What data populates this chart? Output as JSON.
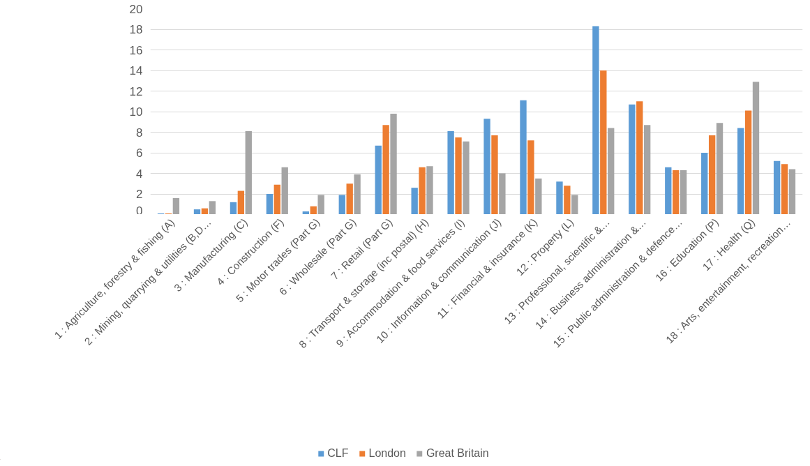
{
  "chart_data": {
    "type": "bar",
    "categories": [
      "1 : Agriculture, forestry & fishing (A)",
      "2 : Mining, quarrying & utilities (B,D…",
      "3 : Manufacturing (C)",
      "4 : Construction (F)",
      "5 : Motor trades (Part G)",
      "6 : Wholesale (Part G)",
      "7 : Retail (Part G)",
      "8 : Transport & storage (inc postal) (H)",
      "9 : Accommodation & food services (I)",
      "10 : Information & communication (J)",
      "11 : Financial & insurance (K)",
      "12 : Property (L)",
      "13 : Professional, scientific &…",
      "14 : Business administration &…",
      "15 : Public administration & defence…",
      "16 : Education (P)",
      "17 : Health (Q)",
      "18 : Arts, entertainment, recreation…"
    ],
    "series": [
      {
        "name": "CLF",
        "color": "#5b9bd5",
        "values": [
          0.1,
          0.5,
          1.2,
          2.0,
          0.3,
          1.9,
          6.7,
          2.6,
          8.1,
          9.3,
          11.1,
          3.2,
          18.3,
          10.7,
          4.6,
          6.0,
          8.4,
          5.2
        ]
      },
      {
        "name": "London",
        "color": "#ed7d31",
        "values": [
          0.1,
          0.6,
          2.3,
          2.9,
          0.8,
          3.0,
          8.7,
          4.6,
          7.5,
          7.7,
          7.2,
          2.8,
          14.0,
          11.0,
          4.3,
          7.7,
          10.1,
          4.9
        ]
      },
      {
        "name": "Great Britain",
        "color": "#a5a5a5",
        "values": [
          1.6,
          1.3,
          8.1,
          4.6,
          1.9,
          3.9,
          9.8,
          4.7,
          7.1,
          4.0,
          3.5,
          1.9,
          8.4,
          8.7,
          4.3,
          8.9,
          12.9,
          4.4
        ]
      }
    ],
    "ylim": [
      0,
      20
    ],
    "yticks": [
      0,
      2,
      4,
      6,
      8,
      10,
      12,
      14,
      16,
      18,
      20
    ],
    "grid": "y",
    "legend": "bottom"
  }
}
